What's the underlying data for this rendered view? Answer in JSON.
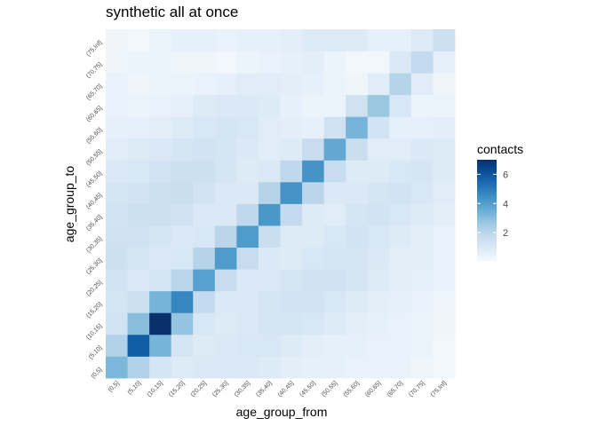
{
  "chart_data": {
    "type": "heatmap",
    "title": "synthetic all at once",
    "xlabel": "age_group_from",
    "ylabel": "age_group_to",
    "x_categories": [
      "(0,5]",
      "(5,10]",
      "(10,15]",
      "(15,20]",
      "(20,25]",
      "(25,30]",
      "(30,35]",
      "(35,40]",
      "(40,45]",
      "(45,50]",
      "(50,55]",
      "(55,60]",
      "(60,65]",
      "(65,70]",
      "(70,75]",
      "(75,Inf]"
    ],
    "y_categories": [
      "(0,5]",
      "(5,10]",
      "(10,15]",
      "(15,20]",
      "(20,25]",
      "(25,30]",
      "(30,35]",
      "(35,40]",
      "(40,45]",
      "(45,50]",
      "(50,55]",
      "(55,60]",
      "(60,65]",
      "(65,70]",
      "(70,75]",
      "(75,Inf]"
    ],
    "legend": {
      "title": "contacts",
      "ticks": [
        2,
        4,
        6
      ],
      "range": [
        0,
        7
      ],
      "position": "right"
    },
    "values": [
      [
        3.2,
        2.2,
        1.2,
        0.9,
        1.0,
        1.0,
        1.0,
        0.9,
        0.7,
        0.6,
        0.6,
        0.5,
        0.5,
        0.5,
        0.3,
        0.2
      ],
      [
        2.2,
        5.8,
        3.3,
        1.2,
        0.9,
        1.0,
        1.1,
        1.1,
        0.9,
        0.7,
        0.6,
        0.6,
        0.5,
        0.5,
        0.4,
        0.2
      ],
      [
        1.3,
        3.0,
        7.0,
        2.8,
        1.1,
        0.9,
        1.0,
        1.2,
        1.2,
        1.1,
        0.9,
        0.7,
        0.6,
        0.5,
        0.4,
        0.3
      ],
      [
        1.2,
        1.5,
        3.3,
        4.7,
        1.8,
        1.0,
        1.0,
        1.2,
        1.3,
        1.3,
        1.1,
        0.9,
        0.7,
        0.6,
        0.5,
        0.3
      ],
      [
        1.3,
        1.0,
        1.2,
        2.0,
        3.9,
        1.7,
        1.0,
        1.0,
        1.2,
        1.4,
        1.4,
        1.2,
        0.9,
        0.7,
        0.6,
        0.5
      ],
      [
        1.5,
        1.2,
        1.0,
        1.1,
        2.1,
        4.1,
        1.7,
        1.0,
        0.9,
        1.1,
        1.2,
        1.2,
        1.0,
        0.7,
        0.7,
        0.5
      ],
      [
        1.4,
        1.4,
        1.2,
        1.0,
        1.1,
        2.0,
        4.1,
        1.6,
        0.9,
        0.9,
        1.1,
        1.3,
        1.1,
        0.9,
        0.7,
        0.5
      ],
      [
        1.3,
        1.5,
        1.5,
        1.4,
        1.0,
        1.0,
        1.9,
        4.2,
        1.8,
        0.9,
        0.8,
        1.2,
        1.3,
        1.1,
        0.9,
        0.7
      ],
      [
        1.2,
        1.3,
        1.5,
        1.6,
        1.3,
        1.0,
        1.0,
        2.1,
        4.3,
        2.0,
        1.0,
        1.0,
        1.2,
        1.3,
        1.1,
        0.8
      ],
      [
        1.0,
        1.1,
        1.3,
        1.5,
        1.5,
        1.2,
        0.9,
        1.0,
        1.9,
        4.3,
        1.7,
        0.9,
        0.9,
        1.1,
        1.2,
        0.9
      ],
      [
        0.8,
        0.9,
        1.0,
        1.2,
        1.3,
        1.2,
        1.0,
        0.8,
        0.9,
        1.7,
        3.7,
        1.6,
        0.8,
        0.8,
        1.0,
        0.9
      ],
      [
        0.6,
        0.6,
        0.7,
        0.9,
        1.1,
        1.2,
        1.1,
        0.8,
        0.7,
        0.6,
        1.4,
        3.3,
        1.3,
        0.6,
        0.6,
        0.7
      ],
      [
        0.5,
        0.4,
        0.5,
        0.6,
        0.9,
        1.0,
        1.0,
        0.9,
        0.6,
        0.4,
        0.4,
        1.4,
        2.7,
        1.1,
        0.4,
        0.4
      ],
      [
        0.5,
        0.3,
        0.4,
        0.4,
        0.5,
        0.6,
        0.8,
        0.8,
        0.7,
        0.6,
        0.4,
        0.3,
        0.8,
        2.1,
        0.8,
        0.3
      ],
      [
        0.3,
        0.4,
        0.4,
        0.3,
        0.3,
        0.2,
        0.4,
        0.5,
        0.6,
        0.7,
        0.4,
        0.2,
        0.2,
        1.0,
        1.8,
        0.6
      ],
      [
        0.3,
        0.2,
        0.4,
        0.6,
        0.6,
        0.5,
        0.6,
        0.6,
        0.7,
        0.9,
        0.9,
        0.9,
        0.6,
        0.6,
        0.9,
        1.5
      ]
    ]
  }
}
